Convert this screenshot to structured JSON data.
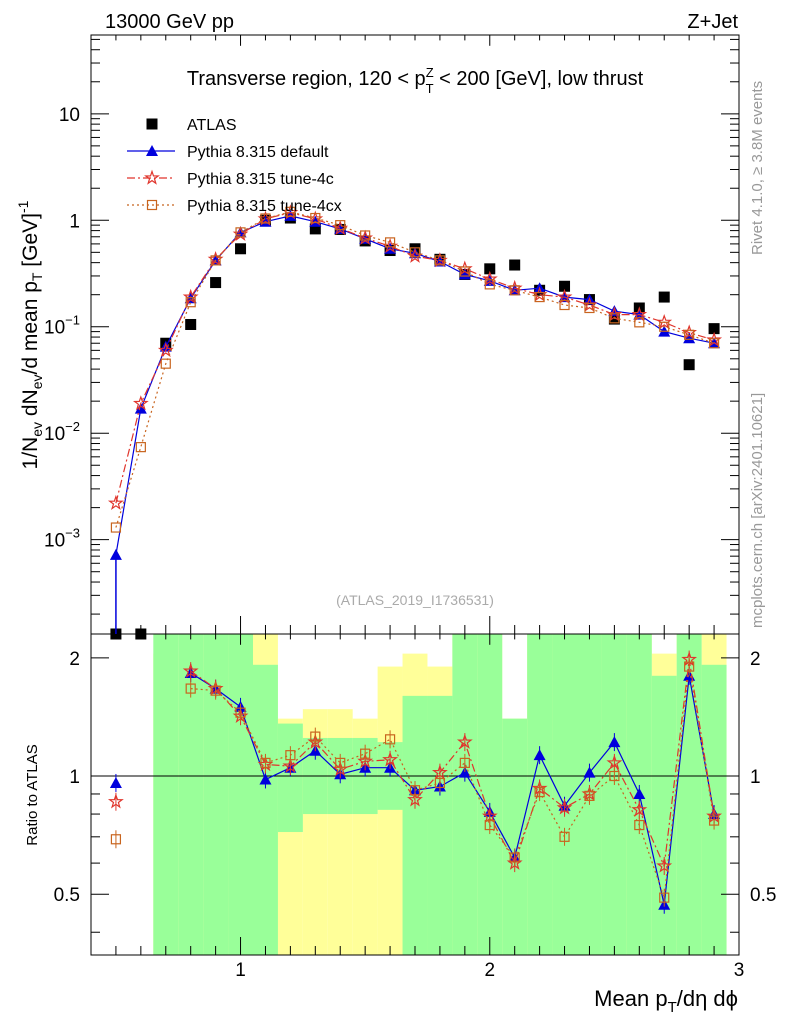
{
  "header": {
    "left": "13000 GeV pp",
    "right": "Z+Jet"
  },
  "side": {
    "rivet": "Rivet 4.1.0, ≥ 3.8M events",
    "mcplots": "mcplots.cern.ch [arXiv:2401.10621]"
  },
  "chart_data": {
    "type": "scatter",
    "title": {
      "pre": "Transverse region, 120 < p",
      "sup": "Z",
      "sub": "T",
      "post": " < 200 [GeV], low thrust"
    },
    "watermark": "(ATLAS_2019_I1736531)",
    "ylabel": {
      "main": "1/N",
      "parts": [
        "1/N",
        "ev",
        " dN",
        "ev",
        "/d mean p",
        "T",
        " [GeV]",
        "-1"
      ]
    },
    "xlabel": {
      "a": "Mean p",
      "sub": "T",
      "b": "/dη dϕ"
    },
    "xlim": [
      0.4,
      3.0
    ],
    "ylim_main": [
      0.00013,
      55
    ],
    "ylog": true,
    "ylim_ratio": [
      0.35,
      2.3
    ],
    "ratio_ylabel": "Ratio to ATLAS",
    "x_ticks": [
      "1",
      "2",
      "3"
    ],
    "y_ticks_main": [
      {
        "v": 10,
        "base": "10",
        "exp": ""
      },
      {
        "v": 1,
        "base": "1",
        "exp": ""
      },
      {
        "v": 0.1,
        "base": "10",
        "exp": "−1"
      },
      {
        "v": 0.01,
        "base": "10",
        "exp": "−2"
      },
      {
        "v": 0.001,
        "base": "10",
        "exp": "−3"
      }
    ],
    "y_ticks_ratio": [
      "0.5",
      "1",
      "2"
    ],
    "x": [
      0.5,
      0.6,
      0.7,
      0.8,
      0.9,
      1.0,
      1.1,
      1.2,
      1.3,
      1.4,
      1.5,
      1.6,
      1.7,
      1.8,
      1.9,
      2.0,
      2.1,
      2.2,
      2.3,
      2.4,
      2.5,
      2.6,
      2.7,
      2.8,
      2.9
    ],
    "legend": [
      "ATLAS",
      "Pythia 8.315 default",
      "Pythia 8.315 tune-4c",
      "Pythia 8.315 tune-4cx"
    ],
    "series": [
      {
        "name": "ATLAS",
        "values": [
          0.00013,
          0.00013,
          0.07,
          0.105,
          0.26,
          0.54,
          1.0,
          1.05,
          0.83,
          0.82,
          0.64,
          0.52,
          0.54,
          0.43,
          0.31,
          0.35,
          0.38,
          0.22,
          0.24,
          0.18,
          0.118,
          0.15,
          0.19,
          0.044,
          0.096
        ]
      },
      {
        "name": "Pythia 8.315 default",
        "values": [
          0.00072,
          0.017,
          0.065,
          0.185,
          0.42,
          0.77,
          0.97,
          1.1,
          0.97,
          0.83,
          0.67,
          0.54,
          0.49,
          0.41,
          0.31,
          0.27,
          0.22,
          0.23,
          0.19,
          0.18,
          0.14,
          0.13,
          0.09,
          0.078,
          0.07
        ]
      },
      {
        "name": "Pythia 8.315 tune-4c",
        "values": [
          0.0022,
          0.019,
          0.06,
          0.19,
          0.43,
          0.74,
          1.03,
          1.18,
          1.03,
          0.84,
          0.68,
          0.57,
          0.46,
          0.42,
          0.35,
          0.28,
          0.23,
          0.2,
          0.19,
          0.16,
          0.13,
          0.13,
          0.11,
          0.088,
          0.075
        ]
      },
      {
        "name": "Pythia 8.315 tune-4cx",
        "values": [
          0.0013,
          0.0074,
          0.045,
          0.17,
          0.42,
          0.77,
          1.04,
          1.2,
          1.05,
          0.9,
          0.72,
          0.62,
          0.5,
          0.42,
          0.33,
          0.25,
          0.22,
          0.19,
          0.16,
          0.15,
          0.12,
          0.11,
          0.1,
          0.084,
          0.07
        ]
      }
    ],
    "ratio": {
      "default": [
        0.96,
        null,
        null,
        1.83,
        1.67,
        1.5,
        0.98,
        1.05,
        1.16,
        1.01,
        1.05,
        1.05,
        0.92,
        0.94,
        1.02,
        0.81,
        0.62,
        1.13,
        0.84,
        1.02,
        1.22,
        0.9,
        0.47,
        1.8,
        0.8
      ],
      "tune4c": [
        0.86,
        null,
        null,
        1.85,
        1.67,
        1.42,
        1.07,
        1.06,
        1.22,
        1.04,
        1.09,
        1.1,
        0.87,
        1.02,
        1.22,
        0.79,
        0.6,
        0.93,
        0.83,
        0.9,
        1.08,
        0.82,
        0.59,
        1.98,
        0.79
      ],
      "tune4cx": [
        0.69,
        null,
        null,
        1.67,
        1.65,
        1.45,
        1.08,
        1.13,
        1.26,
        1.08,
        1.14,
        1.24,
        0.92,
        0.96,
        1.08,
        0.75,
        0.62,
        0.91,
        0.7,
        0.89,
        1.0,
        0.75,
        0.49,
        1.9,
        0.77
      ]
    },
    "ratio_bands": {
      "green": [
        null,
        null,
        [
          0.35,
          2.3
        ],
        [
          0.35,
          2.3
        ],
        [
          0.35,
          2.3
        ],
        [
          0.35,
          2.3
        ],
        [
          0.35,
          1.92
        ],
        [
          0.72,
          1.36
        ],
        [
          0.8,
          1.25
        ],
        [
          0.8,
          1.25
        ],
        [
          0.8,
          1.25
        ],
        [
          0.82,
          1.22
        ],
        [
          0.35,
          1.6
        ],
        [
          0.35,
          1.6
        ],
        [
          0.35,
          2.3
        ],
        [
          0.35,
          2.3
        ],
        [
          0.35,
          1.4
        ],
        [
          0.35,
          2.3
        ],
        [
          0.35,
          2.3
        ],
        [
          0.35,
          2.3
        ],
        [
          0.35,
          2.3
        ],
        [
          0.35,
          2.3
        ],
        [
          0.35,
          1.8
        ],
        [
          0.35,
          2.3
        ],
        [
          0.35,
          1.92
        ]
      ],
      "yellow": [
        null,
        null,
        [
          0.35,
          2.05
        ],
        [
          0.35,
          2.3
        ],
        [
          0.35,
          2.3
        ],
        [
          0.35,
          2.3
        ],
        [
          0.35,
          2.3
        ],
        [
          0.35,
          1.4
        ],
        [
          0.35,
          1.48
        ],
        [
          0.35,
          1.48
        ],
        [
          0.35,
          1.4
        ],
        [
          0.35,
          1.9
        ],
        [
          0.35,
          2.05
        ],
        [
          0.35,
          1.9
        ],
        [
          0.35,
          2.3
        ],
        [
          0.35,
          2.3
        ],
        [
          0.35,
          1.4
        ],
        [
          0.35,
          2.3
        ],
        [
          0.35,
          2.3
        ],
        [
          0.35,
          2.3
        ],
        [
          0.35,
          2.3
        ],
        [
          0.35,
          2.3
        ],
        [
          0.35,
          2.05
        ],
        [
          0.35,
          2.3
        ],
        [
          0.35,
          2.3
        ]
      ]
    },
    "colors": {
      "atlas": "#000000",
      "default": "#0000dd",
      "tune4c": "#e0352c",
      "tune4cx": "#c8641e",
      "green": "#99ff99",
      "yellow": "#ffff99"
    }
  }
}
